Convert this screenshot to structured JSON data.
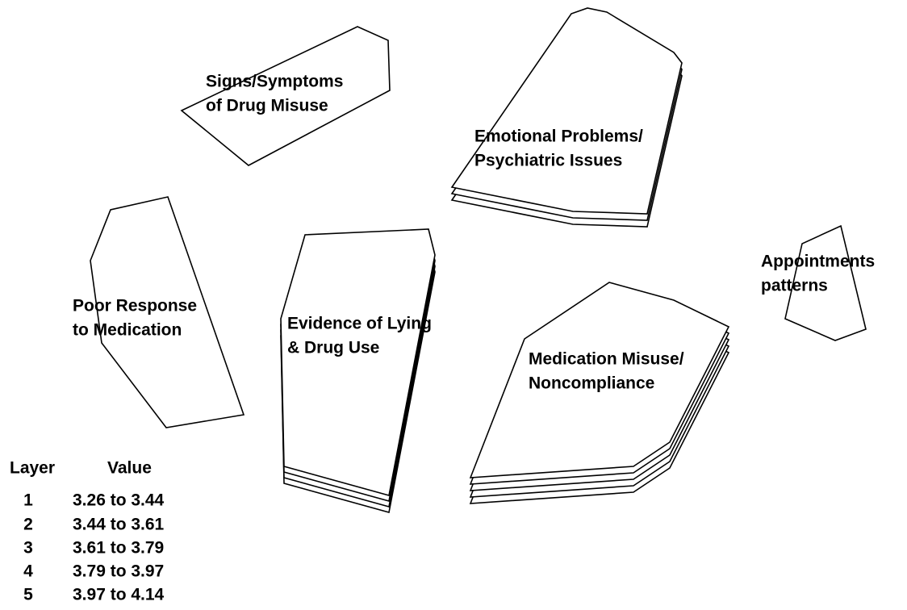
{
  "clusters": [
    {
      "label": [
        "Signs/Symptoms",
        "of Drug Misuse"
      ],
      "layers": 1
    },
    {
      "label": [
        "Emotional Problems/",
        "Psychiatric Issues"
      ],
      "layers": 3
    },
    {
      "label": [
        "Poor Response",
        "to Medication"
      ],
      "layers": 1
    },
    {
      "label": [
        "Evidence of Lying",
        "& Drug Use"
      ],
      "layers": 4
    },
    {
      "label": [
        "Medication Misuse/",
        "Noncompliance"
      ],
      "layers": 5
    },
    {
      "label": [
        "Appointments",
        "patterns"
      ],
      "layers": 1
    }
  ],
  "legend": {
    "header": [
      "Layer",
      "Value"
    ],
    "rows": [
      [
        "1",
        "3.26 to 3.44"
      ],
      [
        "2",
        "3.44 to 3.61"
      ],
      [
        "3",
        "3.61 to 3.79"
      ],
      [
        "4",
        "3.79 to 3.97"
      ],
      [
        "5",
        "3.97 to 4.14"
      ]
    ]
  }
}
